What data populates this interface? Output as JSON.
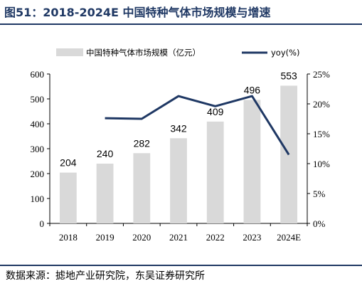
{
  "figure_title": "图51：2018-2024E 中国特种气体市场规模与增速",
  "source_note": "数据来源：摅地产业研究院，东吴证券研究所",
  "colors": {
    "bar": "#d9d9d9",
    "line": "#1f3864",
    "title": "#1f3864"
  },
  "chart_data": {
    "type": "bar",
    "categories": [
      "2018",
      "2019",
      "2020",
      "2021",
      "2022",
      "2023",
      "2024E"
    ],
    "series": [
      {
        "name": "中国特种气体市场规模（亿元）",
        "type": "bar",
        "axis": "left",
        "values": [
          204,
          240,
          282,
          342,
          409,
          496,
          553
        ],
        "labels": [
          "204",
          "240",
          "282",
          "342",
          "409",
          "496",
          "553"
        ]
      },
      {
        "name": "yoy(%)",
        "type": "line",
        "axis": "right",
        "values": [
          null,
          17.6,
          17.5,
          21.3,
          19.6,
          21.3,
          11.5
        ]
      }
    ],
    "y_left": {
      "lim": [
        0,
        600
      ],
      "ticks": [
        "0",
        "100",
        "200",
        "300",
        "400",
        "500",
        "600"
      ]
    },
    "y_right": {
      "lim": [
        0,
        25
      ],
      "ticks": [
        "0%",
        "5%",
        "10%",
        "15%",
        "20%",
        "25%"
      ]
    },
    "grid": false,
    "legend_position": "top"
  }
}
